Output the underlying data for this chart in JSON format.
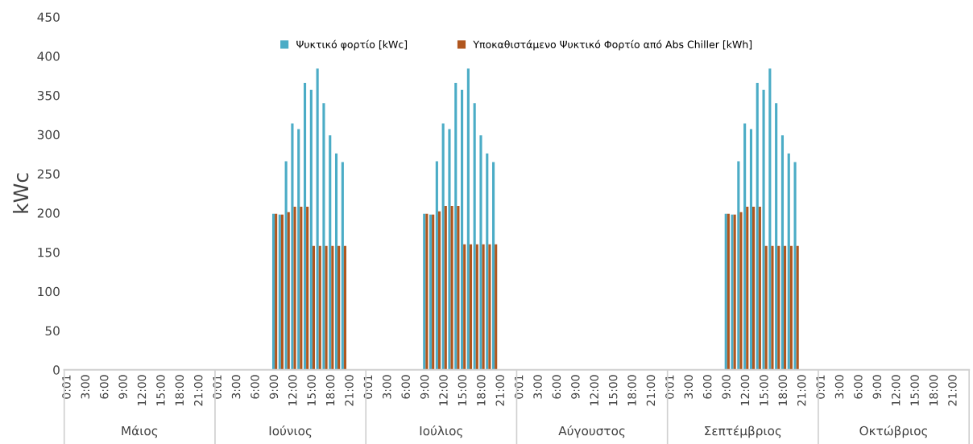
{
  "chart_data": {
    "type": "bar",
    "ylabel": "kWc",
    "categories": [
      "0:01",
      null,
      null,
      "3:00",
      null,
      null,
      "6:00",
      null,
      null,
      "9:00",
      null,
      null,
      "12:00",
      null,
      null,
      "15:00",
      null,
      null,
      "18:00",
      null,
      null,
      "21:00",
      null,
      null,
      "0:01",
      null,
      null,
      "3:00",
      null,
      null,
      "6:00",
      null,
      null,
      "9:00",
      null,
      null,
      "12:00",
      null,
      null,
      "15:00",
      null,
      null,
      "18:00",
      null,
      null,
      "21:00",
      null,
      null,
      "0:01",
      null,
      null,
      "3:00",
      null,
      null,
      "6:00",
      null,
      null,
      "9:00",
      null,
      null,
      "12:00",
      null,
      null,
      "15:00",
      null,
      null,
      "18:00",
      null,
      null,
      "21:00",
      null,
      null,
      "0:01",
      null,
      null,
      "3:00",
      null,
      null,
      "6:00",
      null,
      null,
      "9:00",
      null,
      null,
      "12:00",
      null,
      null,
      "15:00",
      null,
      null,
      "18:00",
      null,
      null,
      "21:00",
      null,
      null,
      "0:01",
      null,
      null,
      "3:00",
      null,
      null,
      "6:00",
      null,
      null,
      "9:00",
      null,
      null,
      "12:00",
      null,
      null,
      "15:00",
      null,
      null,
      "18:00",
      null,
      null,
      "21:00",
      null,
      null,
      "0:01",
      null,
      null,
      "3:00",
      null,
      null,
      "6:00",
      null,
      null,
      "9:00",
      null,
      null,
      "12:00",
      null,
      null,
      "15:00",
      null,
      null,
      "18:00",
      null,
      null,
      "21:00",
      null,
      null
    ],
    "series": [
      {
        "name": "Ψυκτικό φορτίο [kWc]",
        "color": "#4bacc6",
        "values": [
          null,
          null,
          null,
          null,
          null,
          null,
          null,
          null,
          null,
          null,
          null,
          null,
          null,
          null,
          null,
          null,
          null,
          null,
          null,
          null,
          null,
          null,
          null,
          null,
          null,
          null,
          null,
          null,
          null,
          null,
          null,
          null,
          null,
          199,
          198,
          266,
          314,
          307,
          366,
          357,
          384,
          340,
          299,
          276,
          265,
          null,
          null,
          null,
          null,
          null,
          null,
          null,
          null,
          null,
          null,
          null,
          null,
          199,
          198,
          266,
          314,
          307,
          366,
          357,
          384,
          340,
          299,
          276,
          265,
          null,
          null,
          null,
          null,
          null,
          null,
          null,
          null,
          null,
          null,
          null,
          null,
          null,
          null,
          null,
          null,
          null,
          null,
          null,
          null,
          null,
          null,
          null,
          null,
          null,
          null,
          null,
          null,
          null,
          null,
          null,
          null,
          null,
          null,
          null,
          null,
          199,
          198,
          266,
          314,
          307,
          366,
          357,
          384,
          340,
          299,
          276,
          265,
          null,
          null,
          null,
          null,
          null,
          null,
          null,
          null,
          null,
          null,
          null,
          null,
          null,
          null,
          null,
          null,
          null,
          null,
          null,
          null,
          null,
          null,
          null,
          null,
          null,
          null,
          null
        ]
      },
      {
        "name": "Υποκαθιστάμενο Ψυκτικό Φορτίο από Abs Chiller [kWh]",
        "color": "#b0561e",
        "values": [
          null,
          null,
          null,
          null,
          null,
          null,
          null,
          null,
          null,
          null,
          null,
          null,
          null,
          null,
          null,
          null,
          null,
          null,
          null,
          null,
          null,
          null,
          null,
          null,
          null,
          null,
          null,
          null,
          null,
          null,
          null,
          null,
          null,
          199,
          198,
          201,
          208,
          208,
          208,
          158,
          158,
          158,
          158,
          158,
          158,
          null,
          null,
          null,
          null,
          null,
          null,
          null,
          null,
          null,
          null,
          null,
          null,
          199,
          198,
          202,
          209,
          209,
          209,
          160,
          160,
          160,
          160,
          160,
          160,
          null,
          null,
          null,
          null,
          null,
          null,
          null,
          null,
          null,
          null,
          null,
          null,
          null,
          null,
          null,
          null,
          null,
          null,
          null,
          null,
          null,
          null,
          null,
          null,
          null,
          null,
          null,
          null,
          null,
          null,
          null,
          null,
          null,
          null,
          null,
          null,
          199,
          198,
          201,
          208,
          208,
          208,
          158,
          158,
          158,
          158,
          158,
          158,
          null,
          null,
          null,
          null,
          null,
          null,
          null,
          null,
          null,
          null,
          null,
          null,
          null,
          null,
          null,
          null,
          null,
          null,
          null,
          null,
          null,
          null,
          null,
          null,
          null,
          null,
          null
        ]
      }
    ],
    "ylim": [
      0,
      450
    ],
    "yticks": [
      0,
      50,
      100,
      150,
      200,
      250,
      300,
      350,
      400,
      450
    ],
    "grid": false,
    "legend": "top",
    "annotations": [
      "Μάιος",
      "Ιούνιος",
      "Ιούλιος",
      "Αύγουστος",
      "Σεπτέμβριος",
      "Οκτώβριος"
    ]
  }
}
